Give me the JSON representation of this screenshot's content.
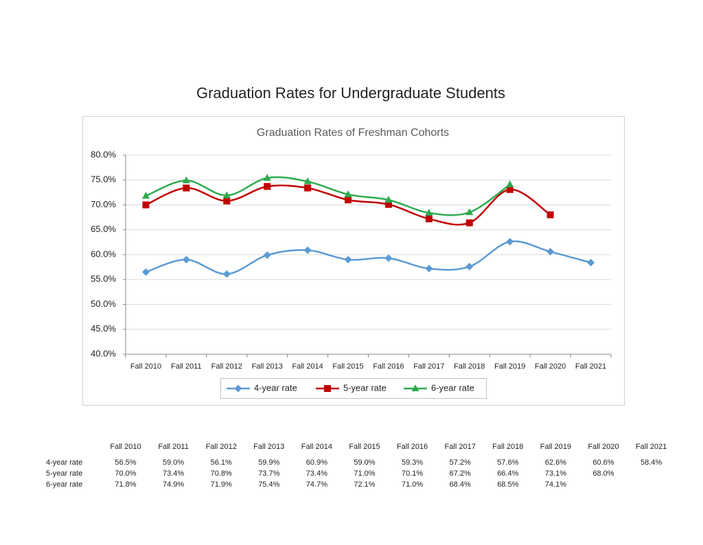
{
  "title": "Graduation Rates for Undergraduate Students",
  "chart_data": {
    "type": "line",
    "title": "Graduation Rates of Freshman Cohorts",
    "categories": [
      "Fall 2010",
      "Fall 2011",
      "Fall 2012",
      "Fall 2013",
      "Fall 2014",
      "Fall 2015",
      "Fall 2016",
      "Fall 2017",
      "Fall 2018",
      "Fall 2019",
      "Fall 2020",
      "Fall 2021"
    ],
    "series": [
      {
        "name": "4-year rate",
        "color": "#5b9bd5",
        "marker": "diamond",
        "values": [
          56.5,
          59.0,
          56.1,
          59.9,
          60.9,
          59.0,
          59.3,
          57.2,
          57.6,
          62.6,
          60.6,
          58.4
        ]
      },
      {
        "name": "5-year rate",
        "color": "#c00000",
        "marker": "square",
        "values": [
          70.0,
          73.4,
          70.8,
          73.7,
          73.4,
          71.0,
          70.1,
          67.2,
          66.4,
          73.1,
          68.0,
          null
        ]
      },
      {
        "name": "6-year rate",
        "color": "#2eaa4f",
        "marker": "triangle",
        "values": [
          71.8,
          74.9,
          71.9,
          75.4,
          74.7,
          72.1,
          71.0,
          68.4,
          68.5,
          74.1,
          null,
          null
        ]
      }
    ],
    "ylim": [
      40,
      80
    ],
    "yticks": [
      {
        "value": 40,
        "label": "40.0%"
      },
      {
        "value": 45,
        "label": "45.0%"
      },
      {
        "value": 50,
        "label": "50.0%"
      },
      {
        "value": 55,
        "label": "55.0%"
      },
      {
        "value": 60,
        "label": "60.0%"
      },
      {
        "value": 65,
        "label": "65.0%"
      },
      {
        "value": 70,
        "label": "70.0%"
      },
      {
        "value": 75,
        "label": "75.0%"
      },
      {
        "value": 80,
        "label": "80.0%"
      }
    ],
    "grid": true,
    "smooth": true,
    "legend": "bottom"
  },
  "table": {
    "header": [
      "Fall 2010",
      "Fall 2011",
      "Fall 2012",
      "Fall 2013",
      "Fall 2014",
      "Fall 2015",
      "Fall 2016",
      "Fall 2017",
      "Fall 2018",
      "Fall 2019",
      "Fall 2020",
      "Fall 2021"
    ],
    "rows": [
      {
        "label": "4-year rate",
        "cells": [
          "56.5%",
          "59.0%",
          "56.1%",
          "59.9%",
          "60.9%",
          "59.0%",
          "59.3%",
          "57.2%",
          "57.6%",
          "62.6%",
          "60.6%",
          "58.4%"
        ]
      },
      {
        "label": "5-year rate",
        "cells": [
          "70.0%",
          "73.4%",
          "70.8%",
          "73.7%",
          "73.4%",
          "71.0%",
          "70.1%",
          "67.2%",
          "66.4%",
          "73.1%",
          "68.0%"
        ]
      },
      {
        "label": "6-year rate",
        "cells": [
          "71.8%",
          "74.9%",
          "71.9%",
          "75.4%",
          "74.7%",
          "72.1%",
          "71.0%",
          "68.4%",
          "68.5%",
          "74.1%"
        ]
      }
    ]
  }
}
